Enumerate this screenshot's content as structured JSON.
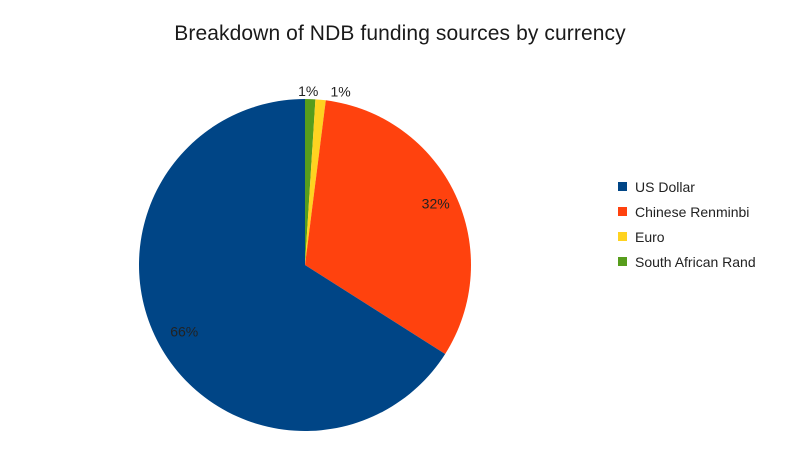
{
  "chart_data": {
    "type": "pie",
    "title": "Breakdown of NDB funding sources by currency",
    "legend_position": "right",
    "slices": [
      {
        "name": "US Dollar",
        "value": 66,
        "label": "66%",
        "color": "#004586"
      },
      {
        "name": "Chinese Renminbi",
        "value": 32,
        "label": "32%",
        "color": "#ff420e"
      },
      {
        "name": "Euro",
        "value": 1,
        "label": "1%",
        "color": "#ffd320"
      },
      {
        "name": "South African Rand",
        "value": 1,
        "label": "1%",
        "color": "#579d1c"
      }
    ]
  }
}
